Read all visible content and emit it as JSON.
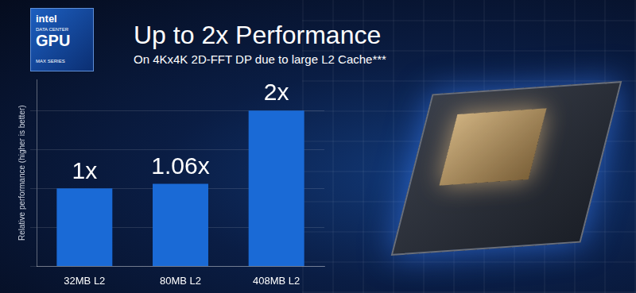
{
  "logo": {
    "brand": "intel",
    "line1": "DATA CENTER",
    "product": "GPU",
    "series": "MAX SERIES"
  },
  "chart_data": {
    "type": "bar",
    "title": "Up to 2x Performance",
    "subtitle": "On 4Kx4K 2D-FFT DP due to large L2 Cache***",
    "y_label": "Relative performance (higher is better)",
    "categories": [
      "32MB L2",
      "80MB L2",
      "408MB L2"
    ],
    "values": [
      1,
      1.06,
      2
    ],
    "value_labels": [
      "1x",
      "1.06x",
      "2x"
    ],
    "data_labels": true,
    "color": "#1a6ad6",
    "ylim": [
      0,
      2.4
    ],
    "yticks": [
      0,
      0.5,
      1,
      1.5,
      2
    ],
    "grid": true,
    "tick_labels": "x"
  }
}
